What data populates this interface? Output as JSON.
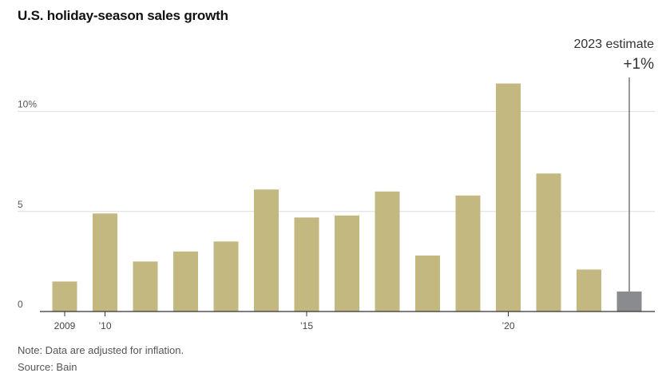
{
  "chart_data": {
    "type": "bar",
    "title": "U.S. holiday-season sales growth",
    "xlabel": "",
    "ylabel": "",
    "categories": [
      "2009",
      "2010",
      "2011",
      "2012",
      "2013",
      "2014",
      "2015",
      "2016",
      "2017",
      "2018",
      "2019",
      "2020",
      "2021",
      "2022",
      "2023"
    ],
    "values": [
      1.5,
      4.9,
      2.5,
      3.0,
      3.5,
      6.1,
      4.7,
      4.8,
      6.0,
      2.8,
      5.8,
      11.4,
      6.9,
      2.1,
      1.0
    ],
    "ylim": [
      0,
      12.5
    ],
    "y_ticks": [
      {
        "value": 0,
        "label": "0"
      },
      {
        "value": 5,
        "label": "5"
      },
      {
        "value": 10,
        "label": "10%"
      }
    ],
    "x_ticks": [
      {
        "index": 0,
        "label": "2009"
      },
      {
        "index": 1,
        "label": "’10"
      },
      {
        "index": 6,
        "label": "’15"
      },
      {
        "index": 11,
        "label": "’20"
      }
    ],
    "grid": true,
    "estimate_index": 14,
    "annotation": {
      "label": "2023 estimate",
      "value": "+1%"
    },
    "colors": {
      "bar": "#c2b880",
      "estimate_bar": "#8a8b8e",
      "grid": "#dddddd",
      "axis": "#333333"
    }
  },
  "notes": {
    "note": "Note: Data are adjusted for inflation.",
    "source": "Source: Bain"
  }
}
